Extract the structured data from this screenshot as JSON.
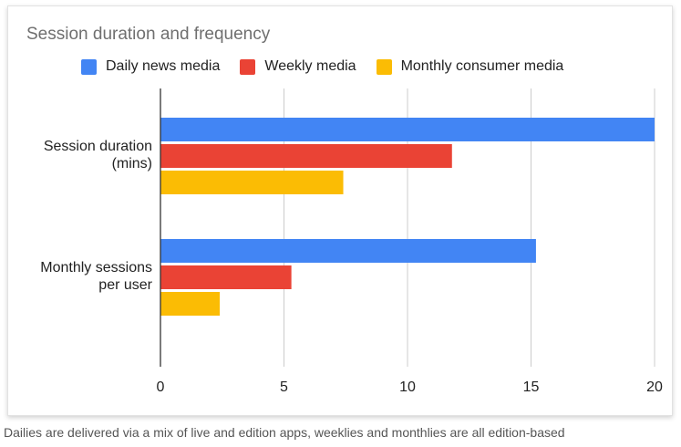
{
  "chart_data": {
    "type": "bar",
    "orientation": "horizontal",
    "title": "Session duration and frequency",
    "categories": [
      [
        "Session duration",
        "(mins)"
      ],
      [
        "Monthly sessions",
        "per user"
      ]
    ],
    "series": [
      {
        "name": "Daily news media",
        "color": "#4285f4",
        "values": [
          20,
          15.2
        ]
      },
      {
        "name": "Weekly media",
        "color": "#ea4335",
        "values": [
          11.8,
          5.3
        ]
      },
      {
        "name": "Monthly consumer media",
        "color": "#fbbc04",
        "values": [
          7.4,
          2.4
        ]
      }
    ],
    "xlim": [
      0,
      20
    ],
    "xticks": [
      "0",
      "5",
      "10",
      "15",
      "20"
    ],
    "grid": true,
    "legend_position": "top",
    "xlabel": "",
    "ylabel": ""
  },
  "caption": "Dailies are delivered via a mix of live and edition apps, weeklies and monthlies are all edition-based"
}
